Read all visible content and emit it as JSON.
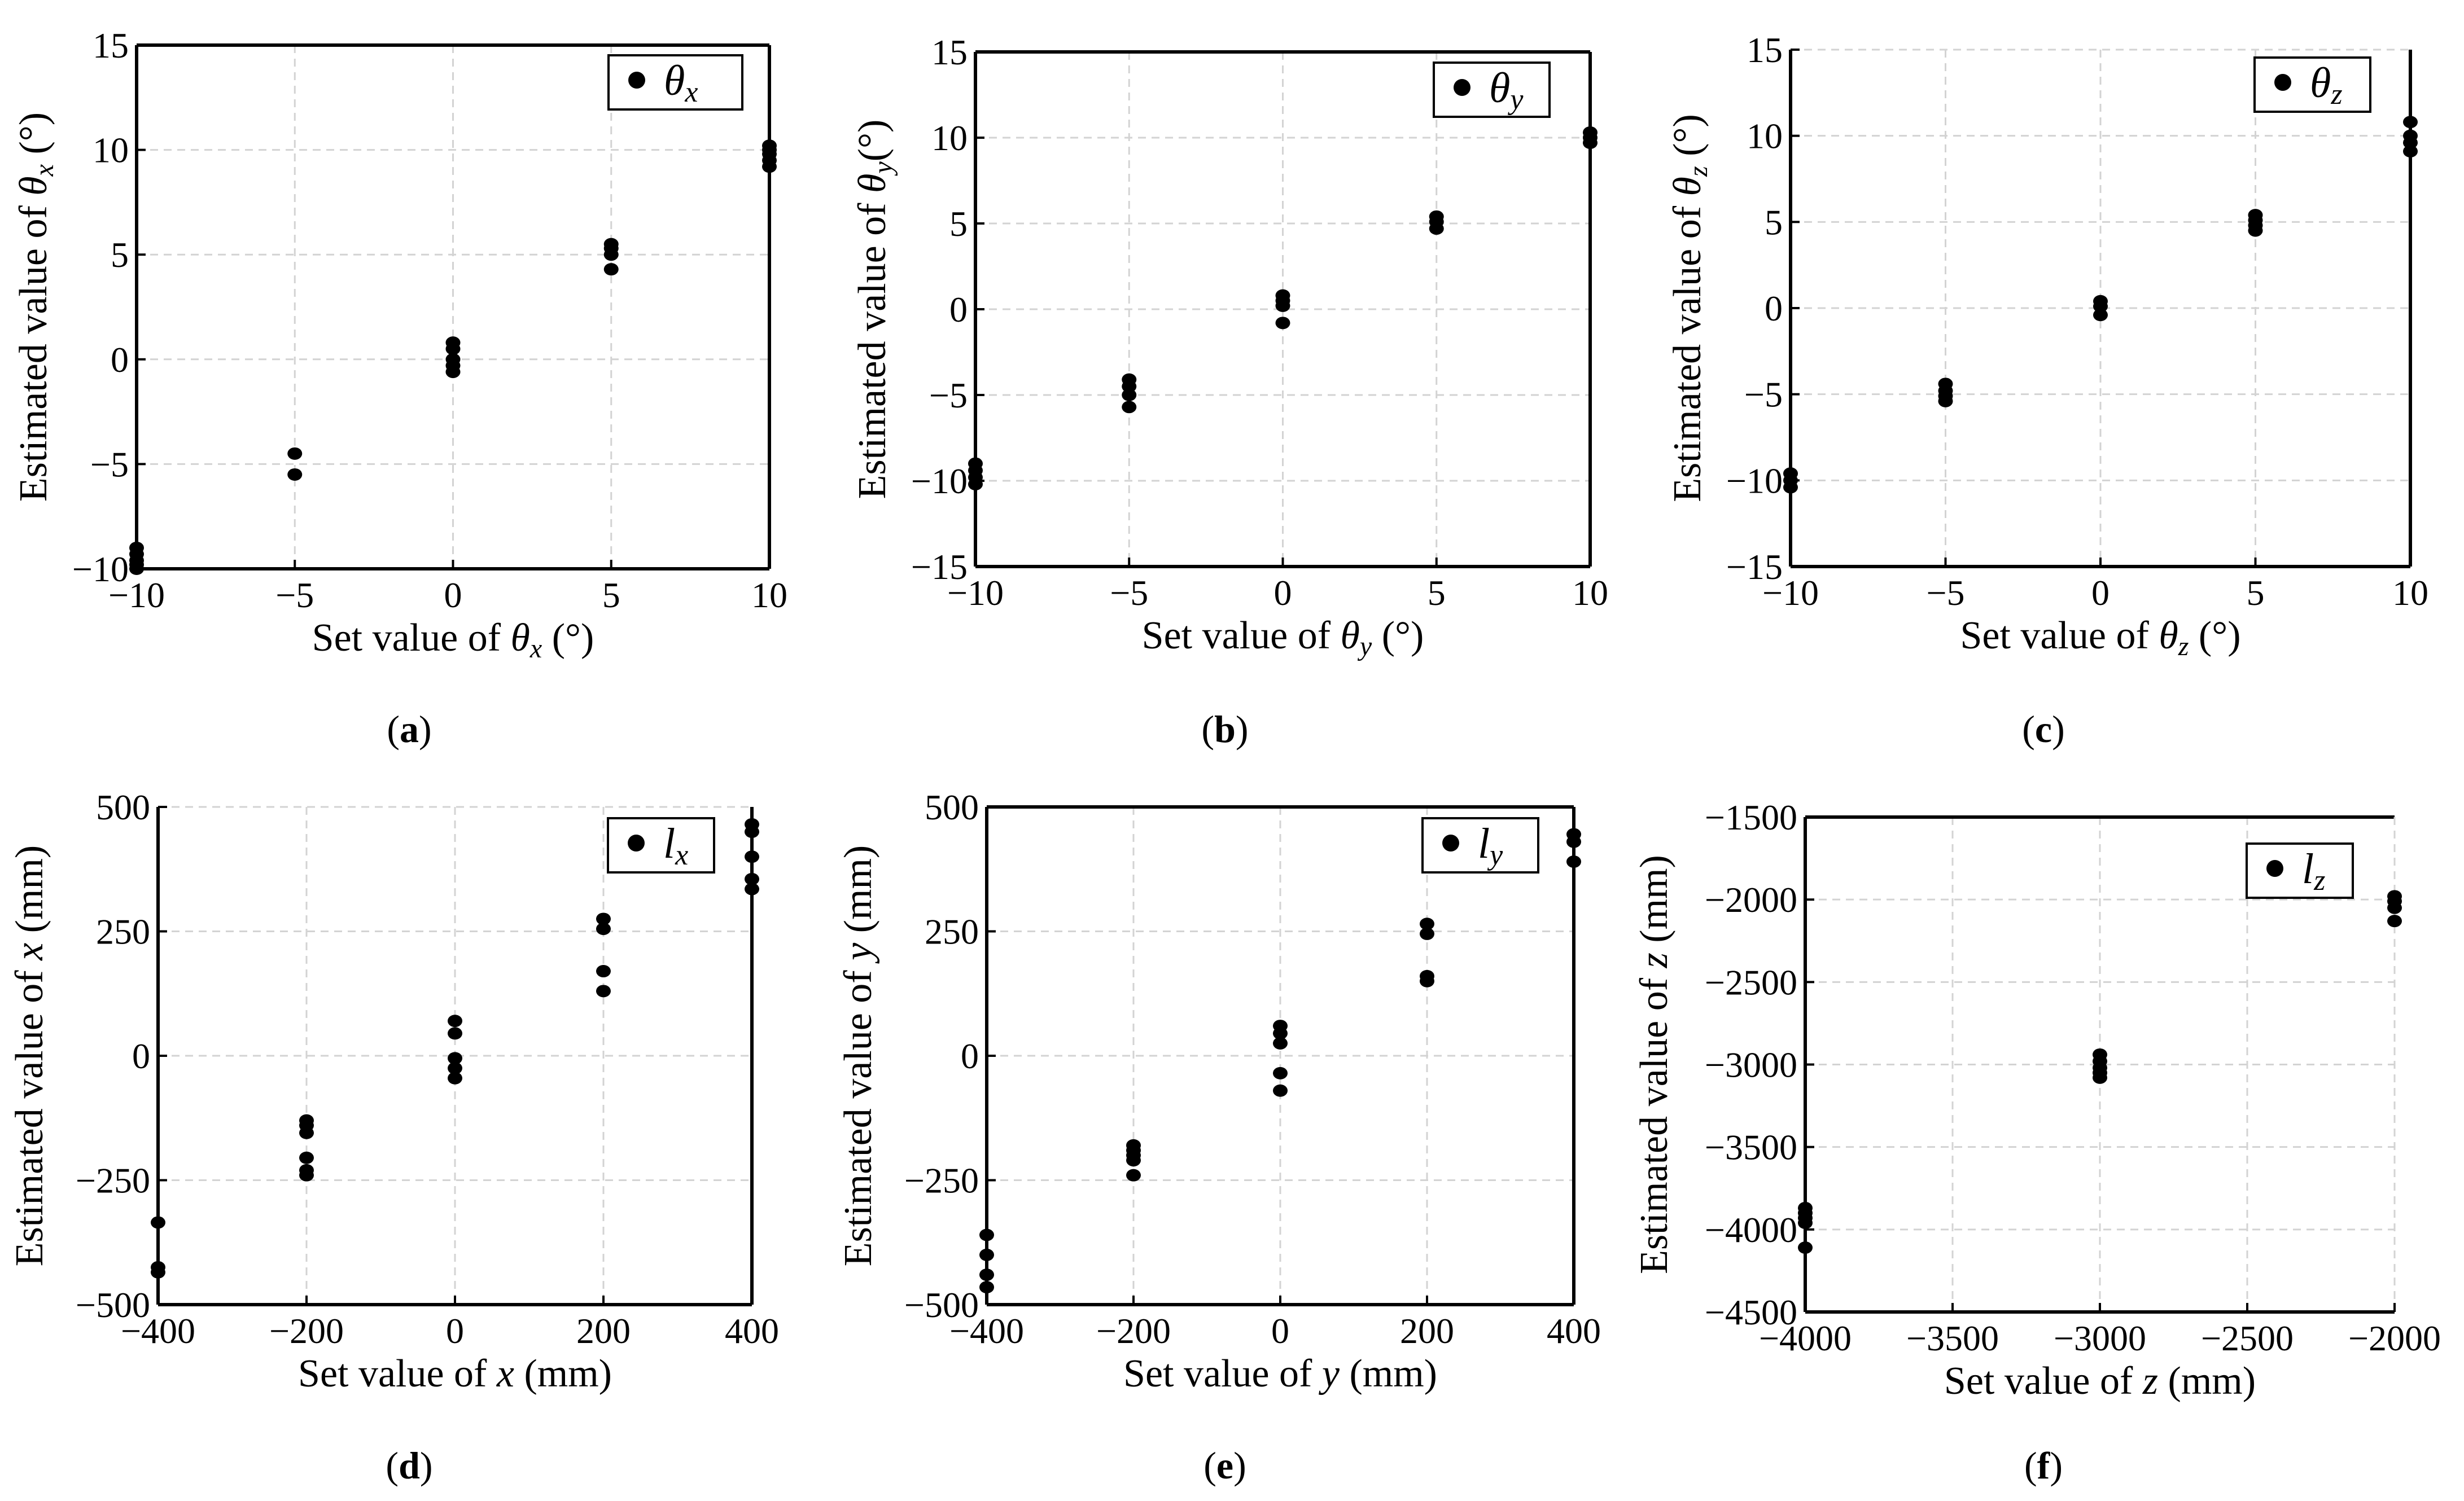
{
  "chart_data": [
    {
      "id": "a",
      "type": "scatter",
      "caption_letter": "a",
      "xlabel": {
        "prefix": "Set value of ",
        "symbol": "θ",
        "sub": "x",
        "suffix": " (°)"
      },
      "ylabel": {
        "prefix": "Estimated value of ",
        "symbol": "θ",
        "sub": "x",
        "suffix": " (°)"
      },
      "legend": {
        "symbol": "θ",
        "sub": "x"
      },
      "xlim": [
        -10,
        10
      ],
      "ylim": [
        -10,
        15
      ],
      "xticks": [
        -10,
        -5,
        0,
        5,
        10
      ],
      "yticks": [
        -10,
        -5,
        0,
        5,
        10,
        15
      ],
      "xtick_labels": [
        "−10",
        "−5",
        "0",
        "5",
        "10"
      ],
      "ytick_labels": [
        "−10",
        "−5",
        "0",
        "5",
        "10",
        "15"
      ],
      "x": [
        -10,
        -10,
        -10,
        -10,
        -10,
        -5,
        -5,
        0,
        0,
        0,
        0,
        0,
        5,
        5,
        5,
        5,
        10,
        10,
        10,
        10,
        10
      ],
      "y": [
        -9.0,
        -9.3,
        -9.6,
        -9.8,
        -10.0,
        -4.5,
        -5.5,
        0.8,
        0.5,
        0.0,
        -0.3,
        -0.6,
        5.5,
        5.3,
        5.0,
        4.3,
        10.2,
        10.0,
        9.8,
        9.5,
        9.2
      ],
      "grid": true
    },
    {
      "id": "b",
      "type": "scatter",
      "caption_letter": "b",
      "xlabel": {
        "prefix": "Set value of ",
        "symbol": "θ",
        "sub": "y",
        "suffix": " (°)"
      },
      "ylabel": {
        "prefix": "Estimated value of ",
        "symbol": "θ",
        "sub": "y",
        "suffix": "(°)"
      },
      "legend": {
        "symbol": "θ",
        "sub": "y"
      },
      "xlim": [
        -10,
        10
      ],
      "ylim": [
        -15,
        15
      ],
      "xticks": [
        -10,
        -5,
        0,
        5,
        10
      ],
      "yticks": [
        -15,
        -10,
        -5,
        0,
        5,
        10,
        15
      ],
      "xtick_labels": [
        "−10",
        "−5",
        "0",
        "5",
        "10"
      ],
      "ytick_labels": [
        "−15",
        "−10",
        "−5",
        "0",
        "5",
        "10",
        "15"
      ],
      "x": [
        -10,
        -10,
        -10,
        -10,
        -5,
        -5,
        -5,
        -5,
        0,
        0,
        0,
        0,
        5,
        5,
        5,
        10,
        10,
        10
      ],
      "y": [
        -9.0,
        -9.4,
        -9.8,
        -10.2,
        -4.1,
        -4.5,
        -5.0,
        -5.7,
        0.8,
        0.5,
        0.2,
        -0.8,
        5.4,
        5.1,
        4.7,
        10.3,
        10.0,
        9.7
      ],
      "grid": true
    },
    {
      "id": "c",
      "type": "scatter",
      "caption_letter": "c",
      "xlabel": {
        "prefix": "Set value of ",
        "symbol": "θ",
        "sub": "z",
        "suffix": " (°)"
      },
      "ylabel": {
        "prefix": "Estimated value of ",
        "symbol": "θ",
        "sub": "z",
        "suffix": " (°)"
      },
      "legend": {
        "symbol": "θ",
        "sub": "z"
      },
      "xlim": [
        -10,
        10
      ],
      "ylim": [
        -15,
        15
      ],
      "xticks": [
        -10,
        -5,
        0,
        5,
        10
      ],
      "yticks": [
        -15,
        -10,
        -5,
        0,
        5,
        10,
        15
      ],
      "xtick_labels": [
        "−10",
        "−5",
        "0",
        "5",
        "10"
      ],
      "ytick_labels": [
        "−15",
        "−10",
        "−5",
        "0",
        "5",
        "10",
        "15"
      ],
      "x": [
        -10,
        -10,
        -10,
        -5,
        -5,
        -5,
        -5,
        0,
        0,
        0,
        5,
        5,
        5,
        5,
        10,
        10,
        10,
        10
      ],
      "y": [
        -9.6,
        -10.0,
        -10.4,
        -4.4,
        -4.8,
        -5.1,
        -5.4,
        0.4,
        0.1,
        -0.4,
        5.4,
        5.1,
        4.8,
        4.5,
        10.8,
        10.0,
        9.6,
        9.1
      ],
      "grid": true
    },
    {
      "id": "d",
      "type": "scatter",
      "caption_letter": "d",
      "xlabel": {
        "prefix": "Set value of ",
        "symbol": "x",
        "sub": "",
        "suffix": " (mm)"
      },
      "ylabel": {
        "prefix": "Estimated value of ",
        "symbol": "x",
        "sub": "",
        "suffix": " (mm)"
      },
      "legend": {
        "symbol": "l",
        "sub": "x"
      },
      "xlim": [
        -400,
        400
      ],
      "ylim": [
        -500,
        500
      ],
      "xticks": [
        -400,
        -200,
        0,
        200,
        400
      ],
      "yticks": [
        -500,
        -250,
        0,
        250,
        500
      ],
      "xtick_labels": [
        "−400",
        "−200",
        "0",
        "200",
        "400"
      ],
      "ytick_labels": [
        "−500",
        "−250",
        "0",
        "250",
        "500"
      ],
      "x": [
        -400,
        -400,
        -400,
        -200,
        -200,
        -200,
        -200,
        -200,
        -200,
        0,
        0,
        0,
        0,
        0,
        200,
        200,
        200,
        200,
        400,
        400,
        400,
        400,
        400
      ],
      "y": [
        -335,
        -425,
        -435,
        -130,
        -140,
        -155,
        -205,
        -230,
        -240,
        70,
        45,
        -5,
        -25,
        -45,
        275,
        255,
        170,
        130,
        465,
        450,
        400,
        355,
        335
      ],
      "grid": true
    },
    {
      "id": "e",
      "type": "scatter",
      "caption_letter": "e",
      "xlabel": {
        "prefix": "Set value of ",
        "symbol": "y",
        "sub": "",
        "suffix": " (mm)"
      },
      "ylabel": {
        "prefix": "Estimated value of ",
        "symbol": "y",
        "sub": "",
        "suffix": " (mm)"
      },
      "legend": {
        "symbol": "l",
        "sub": "y"
      },
      "xlim": [
        -400,
        400
      ],
      "ylim": [
        -500,
        500
      ],
      "xticks": [
        -400,
        -200,
        0,
        200,
        400
      ],
      "yticks": [
        -500,
        -250,
        0,
        250,
        500
      ],
      "xtick_labels": [
        "−400",
        "−200",
        "0",
        "200",
        "400"
      ],
      "ytick_labels": [
        "−500",
        "−250",
        "0",
        "250",
        "500"
      ],
      "x": [
        -400,
        -400,
        -400,
        -400,
        -200,
        -200,
        -200,
        -200,
        -200,
        0,
        0,
        0,
        0,
        0,
        200,
        200,
        200,
        200,
        400,
        400,
        400
      ],
      "y": [
        -360,
        -400,
        -440,
        -465,
        -180,
        -190,
        -200,
        -210,
        -240,
        60,
        45,
        25,
        -35,
        -70,
        265,
        245,
        160,
        150,
        445,
        430,
        390
      ],
      "grid": true
    },
    {
      "id": "f",
      "type": "scatter",
      "caption_letter": "f",
      "xlabel": {
        "prefix": "Set value of ",
        "symbol": "z",
        "sub": "",
        "suffix": " (mm)"
      },
      "ylabel": {
        "prefix": "Estimated value of ",
        "symbol": "z",
        "sub": "",
        "suffix": " (mm)"
      },
      "legend": {
        "symbol": "l",
        "sub": "z"
      },
      "xlim": [
        -4000,
        -2000
      ],
      "ylim": [
        -4500,
        -1500
      ],
      "xticks": [
        -4000,
        -3500,
        -3000,
        -2500,
        -2000
      ],
      "yticks": [
        -4500,
        -4000,
        -3500,
        -3000,
        -2500,
        -2000,
        -1500
      ],
      "xtick_labels": [
        "−4000",
        "−3500",
        "−3000",
        "−2500",
        "−2000"
      ],
      "ytick_labels": [
        "−4500",
        "−4000",
        "−3500",
        "−3000",
        "−2500",
        "−2000",
        "−1500"
      ],
      "x": [
        -4000,
        -4000,
        -4000,
        -4000,
        -4000,
        -3000,
        -3000,
        -3000,
        -3000,
        -3000,
        -2000,
        -2000,
        -2000,
        -2000
      ],
      "y": [
        -3870,
        -3900,
        -3930,
        -3960,
        -4110,
        -2940,
        -2980,
        -3020,
        -3050,
        -3080,
        -1980,
        -2010,
        -2050,
        -2130
      ],
      "grid": true
    }
  ]
}
